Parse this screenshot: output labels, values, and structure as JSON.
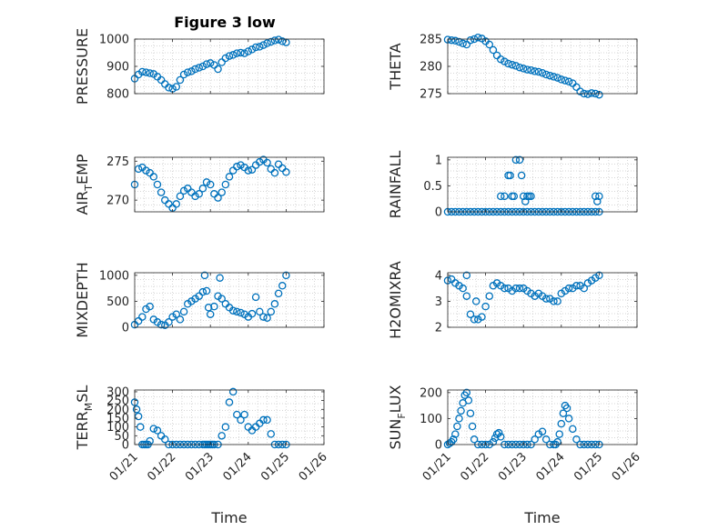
{
  "figure": {
    "title": "Figure 3 low",
    "marker_color": "#0072BD",
    "grid": true,
    "grid_style": "dotted"
  },
  "chart_data": [
    {
      "type": "scatter",
      "ylabel": "PRESSURE",
      "ylim": [
        800,
        1000
      ],
      "yticks": [
        "800",
        "900",
        "1000"
      ],
      "xticks": [],
      "xlabel": "",
      "series": [
        {
          "x": [
            21.0,
            21.1,
            21.2,
            21.3,
            21.4,
            21.5,
            21.6,
            21.7,
            21.8,
            21.9,
            22.0,
            22.1,
            22.2,
            22.3,
            22.4,
            22.5,
            22.6,
            22.7,
            22.8,
            22.9,
            23.0,
            23.1,
            23.2,
            23.3,
            23.4,
            23.5,
            23.6,
            23.7,
            23.8,
            23.9,
            24.0,
            24.1,
            24.2,
            24.3,
            24.4,
            24.5,
            24.6,
            24.7,
            24.8,
            24.9,
            25.0
          ],
          "y": [
            855,
            870,
            880,
            878,
            875,
            872,
            862,
            850,
            835,
            822,
            818,
            825,
            850,
            870,
            878,
            882,
            890,
            895,
            900,
            908,
            912,
            905,
            890,
            915,
            930,
            938,
            942,
            948,
            950,
            948,
            955,
            962,
            970,
            972,
            978,
            985,
            990,
            995,
            998,
            992,
            988
          ]
        }
      ]
    },
    {
      "type": "scatter",
      "ylabel": "THETA",
      "ylim": [
        275,
        285
      ],
      "yticks": [
        "275",
        "280",
        "285"
      ],
      "xticks": [],
      "xlabel": "",
      "series": [
        {
          "x": [
            21.0,
            21.1,
            21.2,
            21.3,
            21.4,
            21.5,
            21.6,
            21.7,
            21.8,
            21.9,
            22.0,
            22.1,
            22.2,
            22.3,
            22.4,
            22.5,
            22.6,
            22.7,
            22.8,
            22.9,
            23.0,
            23.1,
            23.2,
            23.3,
            23.4,
            23.5,
            23.6,
            23.7,
            23.8,
            23.9,
            24.0,
            24.1,
            24.2,
            24.3,
            24.4,
            24.5,
            24.6,
            24.7,
            24.8,
            24.9,
            25.0
          ],
          "y": [
            284.9,
            284.8,
            284.7,
            284.5,
            284.2,
            284.0,
            284.8,
            285.0,
            285.3,
            285.1,
            284.6,
            284.0,
            283.0,
            282.0,
            281.3,
            280.9,
            280.5,
            280.3,
            280.1,
            279.8,
            279.6,
            279.4,
            279.3,
            279.1,
            279.0,
            278.8,
            278.5,
            278.3,
            278.1,
            277.9,
            277.6,
            277.4,
            277.2,
            276.9,
            276.2,
            275.4,
            275.0,
            274.9,
            275.1,
            275.0,
            274.8
          ]
        }
      ]
    },
    {
      "type": "scatter",
      "ylabel": "AIR_TEMP",
      "ylabel_main": "AIR",
      "ylabel_sub": "T",
      "ylabel_rest": "EMP",
      "ylim": [
        268.5,
        275.5
      ],
      "yticks": [
        "270",
        "275"
      ],
      "xticks": [],
      "xlabel": "",
      "series": [
        {
          "x": [
            21.0,
            21.1,
            21.2,
            21.3,
            21.4,
            21.5,
            21.6,
            21.7,
            21.8,
            21.9,
            22.0,
            22.1,
            22.2,
            22.3,
            22.4,
            22.5,
            22.6,
            22.7,
            22.8,
            22.9,
            23.0,
            23.1,
            23.2,
            23.3,
            23.4,
            23.5,
            23.6,
            23.7,
            23.8,
            23.9,
            24.0,
            24.1,
            24.2,
            24.3,
            24.4,
            24.5,
            24.6,
            24.7,
            24.8,
            24.9,
            25.0
          ],
          "y": [
            272.0,
            274.0,
            274.2,
            273.8,
            273.5,
            273.0,
            272.0,
            271.0,
            270.0,
            269.5,
            269.0,
            269.5,
            270.5,
            271.2,
            271.5,
            271.0,
            270.5,
            270.8,
            271.5,
            272.3,
            272.0,
            270.8,
            270.3,
            271.0,
            272.0,
            273.0,
            273.8,
            274.3,
            274.5,
            274.2,
            273.8,
            273.9,
            274.5,
            274.9,
            275.2,
            274.8,
            274.0,
            273.5,
            274.6,
            274.1,
            273.6
          ]
        }
      ]
    },
    {
      "type": "scatter",
      "ylabel": "RAINFALL",
      "ylim": [
        0,
        1.05
      ],
      "yticks": [
        "0",
        "0.5",
        "1"
      ],
      "xticks": [],
      "xlabel": "",
      "series": [
        {
          "x": [
            21.0,
            21.1,
            21.2,
            21.3,
            21.4,
            21.5,
            21.6,
            21.7,
            21.8,
            21.9,
            22.0,
            22.1,
            22.2,
            22.3,
            22.4,
            22.5,
            22.6,
            22.7,
            22.8,
            22.9,
            23.0,
            23.1,
            23.2,
            23.3,
            23.4,
            23.5,
            23.6,
            23.7,
            23.8,
            23.9,
            24.0,
            24.1,
            24.2,
            24.3,
            24.4,
            24.5,
            24.6,
            24.7,
            24.8,
            24.9,
            25.0,
            22.4,
            22.5,
            22.6,
            22.65,
            22.7,
            22.75,
            22.8,
            22.9,
            22.95,
            23.0,
            23.05,
            23.1,
            23.15,
            23.2,
            24.9,
            24.95,
            25.0
          ],
          "y": [
            0,
            0,
            0,
            0,
            0,
            0,
            0,
            0,
            0,
            0,
            0,
            0,
            0,
            0,
            0,
            0,
            0,
            0,
            0,
            0,
            0,
            0,
            0,
            0,
            0,
            0,
            0,
            0,
            0,
            0,
            0,
            0,
            0,
            0,
            0,
            0,
            0,
            0,
            0,
            0,
            0,
            0.3,
            0.3,
            0.7,
            0.7,
            0.3,
            0.3,
            1,
            1,
            0.7,
            0.3,
            0.2,
            0.3,
            0.3,
            0.3,
            0.3,
            0.2,
            0.3
          ]
        }
      ]
    },
    {
      "type": "scatter",
      "ylabel": "MIXDEPTH",
      "ylim": [
        0,
        1050
      ],
      "yticks": [
        "0",
        "500",
        "1000"
      ],
      "xticks": [],
      "xlabel": "",
      "series": [
        {
          "x": [
            21.0,
            21.1,
            21.2,
            21.3,
            21.4,
            21.5,
            21.6,
            21.7,
            21.8,
            21.9,
            22.0,
            22.1,
            22.2,
            22.3,
            22.4,
            22.5,
            22.6,
            22.7,
            22.8,
            22.9,
            23.0,
            23.1,
            23.2,
            23.3,
            23.4,
            23.5,
            23.6,
            23.7,
            23.8,
            23.9,
            24.0,
            24.1,
            24.2,
            24.3,
            24.4,
            24.5,
            24.6,
            24.7,
            24.8,
            24.9,
            25.0,
            22.85,
            22.95,
            23.25
          ],
          "y": [
            50,
            120,
            200,
            350,
            400,
            150,
            100,
            50,
            40,
            100,
            200,
            250,
            150,
            300,
            450,
            500,
            550,
            600,
            680,
            700,
            250,
            400,
            600,
            550,
            450,
            380,
            320,
            300,
            280,
            250,
            200,
            260,
            580,
            300,
            200,
            180,
            300,
            450,
            650,
            800,
            1000,
            1000,
            380,
            950
          ]
        }
      ]
    },
    {
      "type": "scatter",
      "ylabel": "H2OMIXRA",
      "ylim": [
        2,
        4.1
      ],
      "yticks": [
        "2",
        "3",
        "4"
      ],
      "xticks": [],
      "xlabel": "",
      "series": [
        {
          "x": [
            21.0,
            21.1,
            21.2,
            21.3,
            21.4,
            21.5,
            21.6,
            21.7,
            21.8,
            21.9,
            22.0,
            22.1,
            22.2,
            22.3,
            22.4,
            22.5,
            22.6,
            22.7,
            22.8,
            22.9,
            23.0,
            23.1,
            23.2,
            23.3,
            23.4,
            23.5,
            23.6,
            23.7,
            23.8,
            23.9,
            24.0,
            24.1,
            24.2,
            24.3,
            24.4,
            24.5,
            24.6,
            24.7,
            24.8,
            24.9,
            25.0,
            21.5,
            21.75
          ],
          "y": [
            3.8,
            3.85,
            3.7,
            3.6,
            3.5,
            3.2,
            2.5,
            2.3,
            2.3,
            2.4,
            2.8,
            3.2,
            3.6,
            3.7,
            3.6,
            3.5,
            3.5,
            3.4,
            3.5,
            3.5,
            3.5,
            3.4,
            3.3,
            3.2,
            3.3,
            3.2,
            3.1,
            3.1,
            3.0,
            3.0,
            3.3,
            3.4,
            3.5,
            3.5,
            3.6,
            3.6,
            3.5,
            3.7,
            3.8,
            3.9,
            4.0,
            4.0,
            3.0
          ]
        }
      ]
    },
    {
      "type": "scatter",
      "ylabel": "TERR_MSL",
      "ylabel_main": "TERR",
      "ylabel_sub": "M",
      "ylabel_rest": "SL",
      "ylim": [
        0,
        310
      ],
      "yticks": [
        "0",
        "50",
        "100",
        "150",
        "200",
        "250",
        "300"
      ],
      "xticks": [
        "01/21",
        "01/22",
        "01/23",
        "01/24",
        "01/25",
        "01/26"
      ],
      "xlabel": "Time",
      "series": [
        {
          "x": [
            21.0,
            21.05,
            21.1,
            21.15,
            21.2,
            21.25,
            21.3,
            21.35,
            21.4,
            21.5,
            21.6,
            21.7,
            21.8,
            21.9,
            22.0,
            22.1,
            22.2,
            22.3,
            22.4,
            22.5,
            22.6,
            22.7,
            22.8,
            22.85,
            22.9,
            22.95,
            23.0,
            23.05,
            23.1,
            23.2,
            23.3,
            23.4,
            23.5,
            23.6,
            23.7,
            23.8,
            23.9,
            24.0,
            24.1,
            24.2,
            24.3,
            24.4,
            24.5,
            24.6,
            24.7,
            24.8,
            24.9,
            25.0
          ],
          "y": [
            240,
            200,
            160,
            100,
            0,
            0,
            0,
            0,
            20,
            90,
            80,
            50,
            30,
            0,
            0,
            0,
            0,
            0,
            0,
            0,
            0,
            0,
            0,
            0,
            0,
            0,
            0,
            0,
            0,
            0,
            50,
            100,
            240,
            300,
            170,
            140,
            170,
            100,
            80,
            100,
            120,
            140,
            140,
            60,
            0,
            0,
            0,
            0
          ]
        }
      ]
    },
    {
      "type": "scatter",
      "ylabel": "SUN_FLUX",
      "ylabel_main": "SUN",
      "ylabel_sub": "F",
      "ylabel_rest": "LUX",
      "ylim": [
        0,
        210
      ],
      "yticks": [
        "0",
        "100",
        "200"
      ],
      "xticks": [
        "01/21",
        "01/22",
        "01/23",
        "01/24",
        "01/25",
        "01/26"
      ],
      "xlabel": "Time",
      "series": [
        {
          "x": [
            21.0,
            21.05,
            21.1,
            21.15,
            21.2,
            21.25,
            21.3,
            21.35,
            21.4,
            21.45,
            21.5,
            21.55,
            21.6,
            21.65,
            21.7,
            21.8,
            21.9,
            22.0,
            22.1,
            22.2,
            22.25,
            22.3,
            22.35,
            22.4,
            22.5,
            22.6,
            22.7,
            22.8,
            22.9,
            23.0,
            23.1,
            23.2,
            23.3,
            23.4,
            23.5,
            23.6,
            23.7,
            23.8,
            23.85,
            23.9,
            23.95,
            24.0,
            24.05,
            24.1,
            24.15,
            24.2,
            24.3,
            24.4,
            24.5,
            24.6,
            24.7,
            24.8,
            24.9,
            25.0
          ],
          "y": [
            0,
            5,
            10,
            20,
            40,
            70,
            100,
            130,
            160,
            190,
            200,
            170,
            120,
            70,
            20,
            0,
            0,
            0,
            0,
            10,
            25,
            40,
            45,
            30,
            0,
            0,
            0,
            0,
            0,
            0,
            0,
            0,
            20,
            40,
            50,
            20,
            0,
            0,
            0,
            10,
            40,
            80,
            120,
            150,
            140,
            100,
            60,
            20,
            0,
            0,
            0,
            0,
            0,
            0
          ]
        }
      ]
    }
  ]
}
